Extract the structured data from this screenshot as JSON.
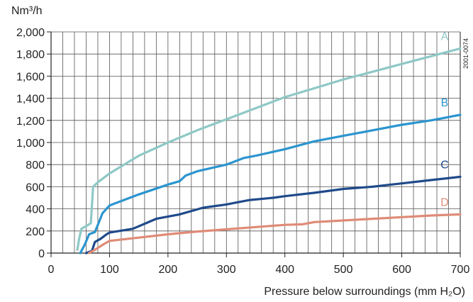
{
  "chart_data": {
    "type": "line",
    "title": "",
    "ylabel": "Nm³/h",
    "xlabel": "Pressure below surroundings (mm H₂O)",
    "reference": "2001-0074",
    "xlim": [
      0,
      700
    ],
    "ylim": [
      0,
      2000
    ],
    "x_major_ticks": [
      0,
      100,
      200,
      300,
      400,
      500,
      600,
      700
    ],
    "x_tick_labels": [
      "0",
      "100",
      "200",
      "300",
      "400",
      "500",
      "600",
      "700"
    ],
    "x_minor_step": 20,
    "y_ticks": [
      0,
      200,
      400,
      600,
      800,
      1000,
      1200,
      1400,
      1600,
      1800,
      2000
    ],
    "y_tick_labels": [
      "0",
      "200",
      "400",
      "600",
      "800",
      "1,000",
      "1,200",
      "1,400",
      "1,600",
      "1,800",
      "2,000"
    ],
    "grid": true,
    "legend": "labels at right end of each curve",
    "series": [
      {
        "name": "A",
        "color": "#8ec8c6",
        "points": [
          [
            45,
            30
          ],
          [
            48,
            130
          ],
          [
            52,
            220
          ],
          [
            62,
            250
          ],
          [
            68,
            270
          ],
          [
            72,
            600
          ],
          [
            80,
            640
          ],
          [
            100,
            720
          ],
          [
            150,
            880
          ],
          [
            200,
            1000
          ],
          [
            250,
            1110
          ],
          [
            300,
            1210
          ],
          [
            350,
            1310
          ],
          [
            400,
            1410
          ],
          [
            450,
            1490
          ],
          [
            500,
            1570
          ],
          [
            550,
            1640
          ],
          [
            600,
            1710
          ],
          [
            650,
            1780
          ],
          [
            700,
            1850
          ]
        ]
      },
      {
        "name": "B",
        "color": "#2b95cf",
        "points": [
          [
            50,
            0
          ],
          [
            58,
            80
          ],
          [
            65,
            170
          ],
          [
            75,
            190
          ],
          [
            82,
            280
          ],
          [
            88,
            360
          ],
          [
            100,
            430
          ],
          [
            150,
            530
          ],
          [
            200,
            620
          ],
          [
            220,
            650
          ],
          [
            230,
            700
          ],
          [
            250,
            740
          ],
          [
            300,
            800
          ],
          [
            330,
            860
          ],
          [
            350,
            880
          ],
          [
            400,
            940
          ],
          [
            450,
            1010
          ],
          [
            500,
            1060
          ],
          [
            550,
            1110
          ],
          [
            600,
            1160
          ],
          [
            650,
            1200
          ],
          [
            700,
            1250
          ]
        ]
      },
      {
        "name": "C",
        "color": "#1f4a8a",
        "points": [
          [
            60,
            0
          ],
          [
            70,
            20
          ],
          [
            75,
            100
          ],
          [
            85,
            130
          ],
          [
            95,
            170
          ],
          [
            100,
            185
          ],
          [
            140,
            220
          ],
          [
            180,
            310
          ],
          [
            220,
            350
          ],
          [
            260,
            410
          ],
          [
            300,
            440
          ],
          [
            320,
            460
          ],
          [
            340,
            480
          ],
          [
            380,
            500
          ],
          [
            400,
            515
          ],
          [
            450,
            545
          ],
          [
            500,
            580
          ],
          [
            550,
            600
          ],
          [
            600,
            630
          ],
          [
            650,
            660
          ],
          [
            700,
            690
          ]
        ]
      },
      {
        "name": "D",
        "color": "#df8b77",
        "points": [
          [
            65,
            0
          ],
          [
            75,
            30
          ],
          [
            90,
            80
          ],
          [
            100,
            110
          ],
          [
            150,
            140
          ],
          [
            200,
            170
          ],
          [
            250,
            195
          ],
          [
            300,
            215
          ],
          [
            350,
            235
          ],
          [
            400,
            255
          ],
          [
            430,
            260
          ],
          [
            450,
            280
          ],
          [
            500,
            295
          ],
          [
            550,
            310
          ],
          [
            600,
            325
          ],
          [
            650,
            340
          ],
          [
            700,
            350
          ]
        ]
      }
    ]
  }
}
